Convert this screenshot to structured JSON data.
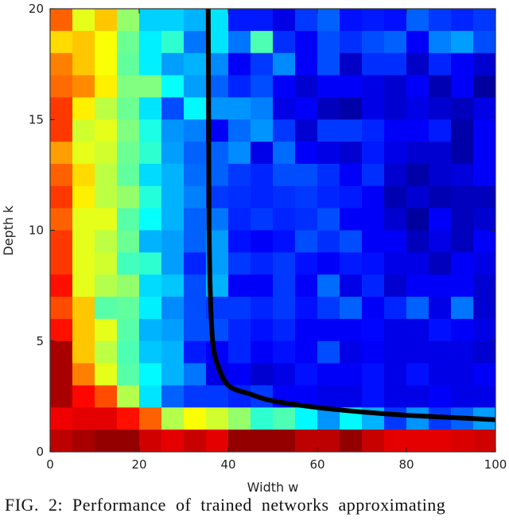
{
  "chart_data": {
    "type": "heatmap",
    "colormap": "jet",
    "xlabel": "Width w",
    "ylabel": "Depth k",
    "xlim": [
      0,
      100
    ],
    "ylim": [
      0,
      20
    ],
    "xticks": [
      0,
      20,
      40,
      60,
      80,
      100
    ],
    "yticks": [
      0,
      5,
      10,
      15,
      20
    ],
    "x_bin_width": 5,
    "y_bin_height": 1,
    "value_scale": [
      0,
      1
    ],
    "grid": false,
    "rows_top_to_bottom": [
      [
        0.78,
        0.6,
        0.68,
        0.52,
        0.33,
        0.33,
        0.3,
        0.35,
        0.15,
        0.15,
        0.1,
        0.18,
        0.22,
        0.14,
        0.15,
        0.14,
        0.22,
        0.18,
        0.16,
        0.18
      ],
      [
        0.66,
        0.68,
        0.62,
        0.48,
        0.36,
        0.42,
        0.24,
        0.35,
        0.24,
        0.45,
        0.17,
        0.12,
        0.2,
        0.17,
        0.2,
        0.22,
        0.12,
        0.25,
        0.28,
        0.2
      ],
      [
        0.75,
        0.68,
        0.62,
        0.47,
        0.36,
        0.28,
        0.3,
        0.26,
        0.12,
        0.18,
        0.26,
        0.12,
        0.2,
        0.07,
        0.17,
        0.17,
        0.07,
        0.16,
        0.12,
        0.08
      ],
      [
        0.77,
        0.74,
        0.64,
        0.5,
        0.5,
        0.38,
        0.28,
        0.22,
        0.16,
        0.2,
        0.12,
        0.08,
        0.12,
        0.12,
        0.1,
        0.08,
        0.12,
        0.05,
        0.12,
        0.03
      ],
      [
        0.82,
        0.64,
        0.56,
        0.48,
        0.35,
        0.2,
        0.37,
        0.27,
        0.27,
        0.25,
        0.1,
        0.12,
        0.06,
        0.04,
        0.1,
        0.08,
        0.1,
        0.08,
        0.06,
        0.1
      ],
      [
        0.82,
        0.58,
        0.6,
        0.5,
        0.4,
        0.27,
        0.25,
        0.12,
        0.23,
        0.27,
        0.18,
        0.08,
        0.18,
        0.18,
        0.16,
        0.12,
        0.12,
        0.15,
        0.04,
        0.12
      ],
      [
        0.72,
        0.6,
        0.58,
        0.48,
        0.42,
        0.28,
        0.22,
        0.22,
        0.26,
        0.1,
        0.23,
        0.12,
        0.1,
        0.08,
        0.15,
        0.1,
        0.08,
        0.08,
        0.04,
        0.12
      ],
      [
        0.78,
        0.66,
        0.56,
        0.47,
        0.34,
        0.3,
        0.23,
        0.22,
        0.18,
        0.16,
        0.2,
        0.2,
        0.17,
        0.12,
        0.17,
        0.08,
        0.04,
        0.08,
        0.09,
        0.12
      ],
      [
        0.82,
        0.64,
        0.56,
        0.52,
        0.41,
        0.3,
        0.25,
        0.18,
        0.17,
        0.16,
        0.17,
        0.18,
        0.16,
        0.15,
        0.12,
        0.05,
        0.08,
        0.05,
        0.06,
        0.06
      ],
      [
        0.78,
        0.6,
        0.6,
        0.46,
        0.38,
        0.3,
        0.22,
        0.24,
        0.16,
        0.18,
        0.16,
        0.17,
        0.2,
        0.12,
        0.12,
        0.08,
        0.03,
        0.12,
        0.06,
        0.08
      ],
      [
        0.82,
        0.6,
        0.56,
        0.48,
        0.3,
        0.28,
        0.22,
        0.28,
        0.14,
        0.12,
        0.14,
        0.2,
        0.17,
        0.2,
        0.12,
        0.12,
        0.06,
        0.1,
        0.06,
        0.12
      ],
      [
        0.82,
        0.6,
        0.58,
        0.44,
        0.42,
        0.28,
        0.16,
        0.28,
        0.18,
        0.16,
        0.18,
        0.14,
        0.12,
        0.15,
        0.14,
        0.1,
        0.1,
        0.06,
        0.12,
        0.1
      ],
      [
        0.86,
        0.6,
        0.55,
        0.52,
        0.34,
        0.32,
        0.2,
        0.3,
        0.12,
        0.12,
        0.18,
        0.12,
        0.23,
        0.1,
        0.16,
        0.08,
        0.12,
        0.12,
        0.12,
        0.08
      ],
      [
        0.8,
        0.68,
        0.46,
        0.47,
        0.36,
        0.26,
        0.2,
        0.18,
        0.18,
        0.16,
        0.18,
        0.14,
        0.18,
        0.22,
        0.12,
        0.16,
        0.22,
        0.1,
        0.24,
        0.08
      ],
      [
        0.86,
        0.68,
        0.6,
        0.46,
        0.3,
        0.28,
        0.2,
        0.2,
        0.16,
        0.14,
        0.16,
        0.12,
        0.12,
        0.12,
        0.13,
        0.1,
        0.1,
        0.14,
        0.12,
        0.1
      ],
      [
        0.96,
        0.68,
        0.56,
        0.45,
        0.32,
        0.3,
        0.15,
        0.12,
        0.16,
        0.12,
        0.14,
        0.12,
        0.2,
        0.1,
        0.12,
        0.1,
        0.1,
        0.1,
        0.1,
        0.08
      ],
      [
        0.96,
        0.75,
        0.6,
        0.46,
        0.37,
        0.3,
        0.24,
        0.1,
        0.12,
        0.08,
        0.1,
        0.14,
        0.12,
        0.12,
        0.14,
        0.1,
        0.14,
        0.1,
        0.1,
        0.12
      ],
      [
        0.96,
        0.87,
        0.8,
        0.55,
        0.35,
        0.22,
        0.18,
        0.18,
        0.16,
        0.18,
        0.12,
        0.12,
        0.1,
        0.1,
        0.14,
        0.1,
        0.1,
        0.12,
        0.1,
        0.1
      ],
      [
        0.89,
        0.9,
        0.9,
        0.86,
        0.78,
        0.55,
        0.62,
        0.58,
        0.52,
        0.42,
        0.45,
        0.37,
        0.27,
        0.37,
        0.3,
        0.18,
        0.27,
        0.18,
        0.22,
        0.28
      ],
      [
        0.94,
        0.96,
        0.98,
        0.98,
        0.92,
        0.9,
        0.93,
        0.9,
        0.98,
        0.98,
        0.98,
        0.94,
        0.94,
        0.98,
        0.93,
        0.9,
        0.9,
        0.9,
        0.91,
        0.92
      ]
    ],
    "curve": {
      "color": "#000000",
      "points": [
        [
          35.5,
          20
        ],
        [
          35.6,
          15
        ],
        [
          35.7,
          10
        ],
        [
          36,
          7
        ],
        [
          36.5,
          5
        ],
        [
          37.5,
          4
        ],
        [
          40,
          3
        ],
        [
          45,
          2.6
        ],
        [
          50,
          2.3
        ],
        [
          60,
          2.0
        ],
        [
          70,
          1.8
        ],
        [
          80,
          1.65
        ],
        [
          90,
          1.55
        ],
        [
          100,
          1.45
        ]
      ]
    }
  },
  "caption": "FIG. 2: Performance of trained networks approximating"
}
